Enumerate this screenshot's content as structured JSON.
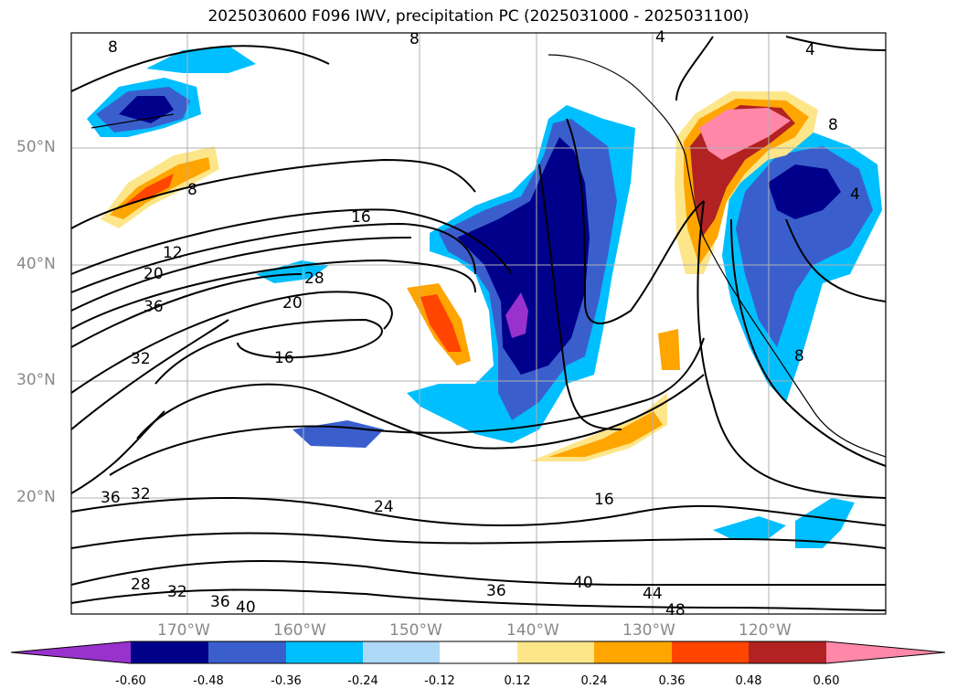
{
  "title": "2025030600 F096 IWV, precipitation PC (2025031000 - 2025031100)",
  "map": {
    "lat_labels": [
      "50°N",
      "40°N",
      "30°N",
      "20°N"
    ],
    "lon_labels": [
      "170°W",
      "160°W",
      "150°W",
      "140°W",
      "130°W",
      "120°W"
    ],
    "contour_labels": [
      "8",
      "8",
      "8",
      "4",
      "4",
      "8",
      "8",
      "4",
      "16",
      "12",
      "20",
      "28",
      "36",
      "20",
      "32",
      "16",
      "36",
      "32",
      "24",
      "16",
      "28",
      "32",
      "36",
      "40",
      "36",
      "40",
      "44",
      "48"
    ]
  },
  "colorbar": {
    "ticks": [
      "-0.60",
      "-0.48",
      "-0.36",
      "-0.24",
      "-0.12",
      "0.12",
      "0.24",
      "0.36",
      "0.48",
      "0.60"
    ],
    "colors": [
      "#9932cc",
      "#00008b",
      "#3a5fcd",
      "#00bfff",
      "#add8f6",
      "#ffffff",
      "#fde68a",
      "#ffa500",
      "#ff4500",
      "#b22222",
      "#ff88a8"
    ]
  }
}
